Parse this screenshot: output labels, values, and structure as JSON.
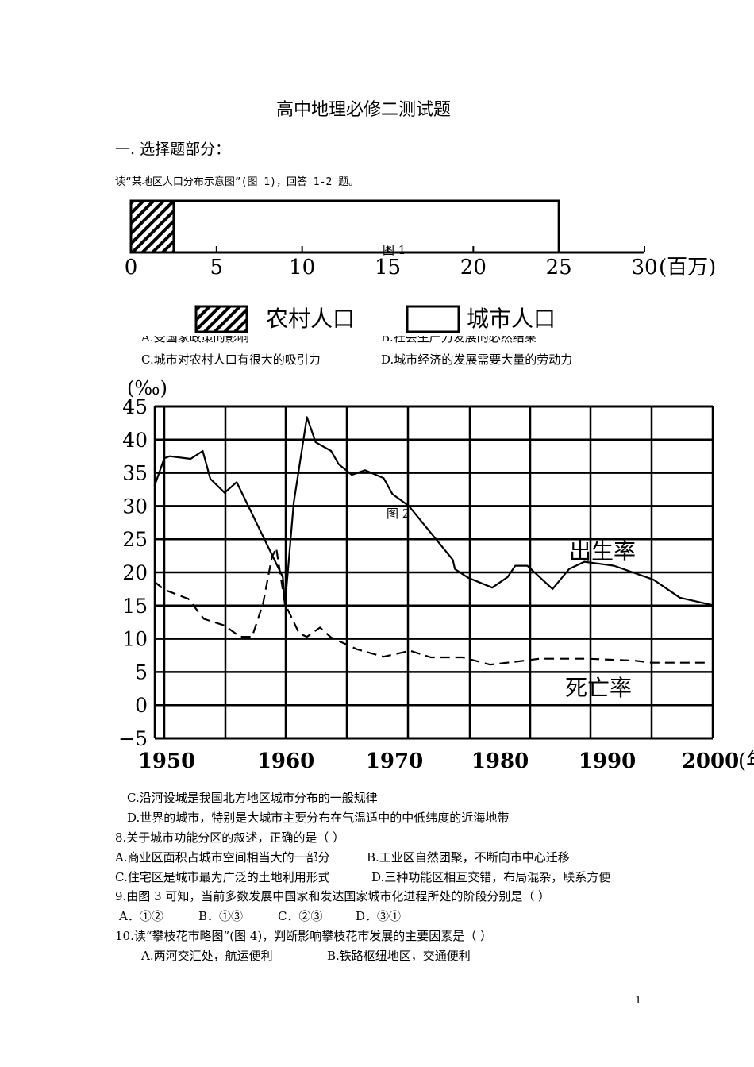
{
  "title": "高中地理必修二测试题",
  "section": "一. 选择题部分：",
  "intro": "读“某地区人口分布示意图”(图 1)，回答 1-2 题。",
  "figure1": {
    "caption": "图 1",
    "unit": "(百万)",
    "ticks": [
      "0",
      "5",
      "10",
      "15",
      "20",
      "25",
      "30"
    ],
    "axis_range": [
      0,
      30
    ],
    "rural_value": 2.5,
    "urban_value": 25,
    "legend": {
      "rural": "农村人口",
      "urban": "城市人口"
    }
  },
  "q_partial": {
    "a": "A.受国家政策的影响",
    "b": "B.社会生产力发展的必然结果"
  },
  "q_cd": {
    "c": "C.城市对农村人口有很大的吸引力",
    "d": "D.城市经济的发展需要大量的劳动力"
  },
  "chart_data": {
    "type": "line",
    "caption": "图 2",
    "ylabel": "(‰)",
    "xlabel_suffix": "(年",
    "xlim": [
      1950,
      2000
    ],
    "ylim": [
      -5,
      45
    ],
    "grid": true,
    "xticks": [
      "1950",
      "1960",
      "1970",
      "1980",
      "1990",
      "2000"
    ],
    "yticks": [
      "45",
      "40",
      "35",
      "30",
      "25",
      "20",
      "15",
      "10",
      "5",
      "0",
      "−5"
    ],
    "series": [
      {
        "name": "出生率",
        "style": "solid",
        "points": [
          [
            1949.1,
            33
          ],
          [
            1950,
            37.2
          ],
          [
            1950.5,
            37.5
          ],
          [
            1952.4,
            37.1
          ],
          [
            1953.5,
            38.3
          ],
          [
            1954.2,
            34.1
          ],
          [
            1955.5,
            32
          ],
          [
            1956.6,
            33.6
          ],
          [
            1960.8,
            19.3
          ],
          [
            1961,
            15
          ],
          [
            1961.8,
            30.5
          ],
          [
            1963,
            43.4
          ],
          [
            1963.8,
            39.6
          ],
          [
            1965.2,
            38.3
          ],
          [
            1965.9,
            36.3
          ],
          [
            1967.1,
            34.7
          ],
          [
            1968.3,
            35.4
          ],
          [
            1970,
            34.2
          ],
          [
            1970.8,
            31.8
          ],
          [
            1972.3,
            30
          ],
          [
            1976.3,
            21.9
          ],
          [
            1976.5,
            20.5
          ],
          [
            1977.7,
            19.2
          ],
          [
            1979.9,
            17.7
          ],
          [
            1981.3,
            19.3
          ],
          [
            1982,
            21
          ],
          [
            1983.1,
            21
          ],
          [
            1985.4,
            17.5
          ],
          [
            1986.9,
            20.5
          ],
          [
            1988.3,
            21.6
          ],
          [
            1991,
            21
          ],
          [
            1994.6,
            18.9
          ],
          [
            1997,
            16.2
          ],
          [
            1999.9,
            15.1
          ]
        ]
      },
      {
        "name": "死亡率",
        "style": "dashed",
        "points": [
          [
            1949.1,
            18.6
          ],
          [
            1950,
            17.4
          ],
          [
            1952.2,
            16
          ],
          [
            1953.6,
            13
          ],
          [
            1955.5,
            12
          ],
          [
            1956.9,
            10.3
          ],
          [
            1958,
            10.3
          ],
          [
            1959,
            15.3
          ],
          [
            1959.8,
            22.2
          ],
          [
            1960.2,
            23.7
          ],
          [
            1961,
            15.3
          ],
          [
            1962.3,
            10.8
          ],
          [
            1963,
            10.3
          ],
          [
            1964.2,
            11.7
          ],
          [
            1965.2,
            10.2
          ],
          [
            1967.6,
            8.4
          ],
          [
            1970,
            7.3
          ],
          [
            1972.4,
            8.2
          ],
          [
            1974.3,
            7.2
          ],
          [
            1977.2,
            7.2
          ],
          [
            1979.7,
            6.1
          ],
          [
            1982.8,
            6.7
          ],
          [
            1984.2,
            7
          ],
          [
            1988.6,
            7
          ],
          [
            1992.9,
            6.7
          ],
          [
            1994.4,
            6.4
          ],
          [
            1999.6,
            6.4
          ]
        ]
      }
    ]
  },
  "questions": [
    "C.沿河设城是我国北方地区城市分布的一般规律",
    "D.世界的城市，特别是大城市主要分布在气温适中的中低纬度的近海地带",
    "8.关于城市功能分区的叙述，正确的是（    ）",
    "A.商业区面积占城市空间相当大的一部分",
    "B.工业区自然团聚，不断向市中心迁移",
    "C.住宅区是城市最为广泛的土地利用形式",
    "D.三种功能区相互交错，布局混杂，联系方便",
    "9.由图 3 可知，当前多数发展中国家和发达国家城市化进程所处的阶段分别是（    ）",
    "A．①②",
    "B．①③",
    "C．②③",
    "D．③①",
    "10.读“攀枝花市略图”(图 4)，判断影响攀枝花市发展的主要因素是（      ）",
    "A.两河交汇处，航运便利",
    "B.铁路枢纽地区，交通便利"
  ],
  "page_number": "1"
}
